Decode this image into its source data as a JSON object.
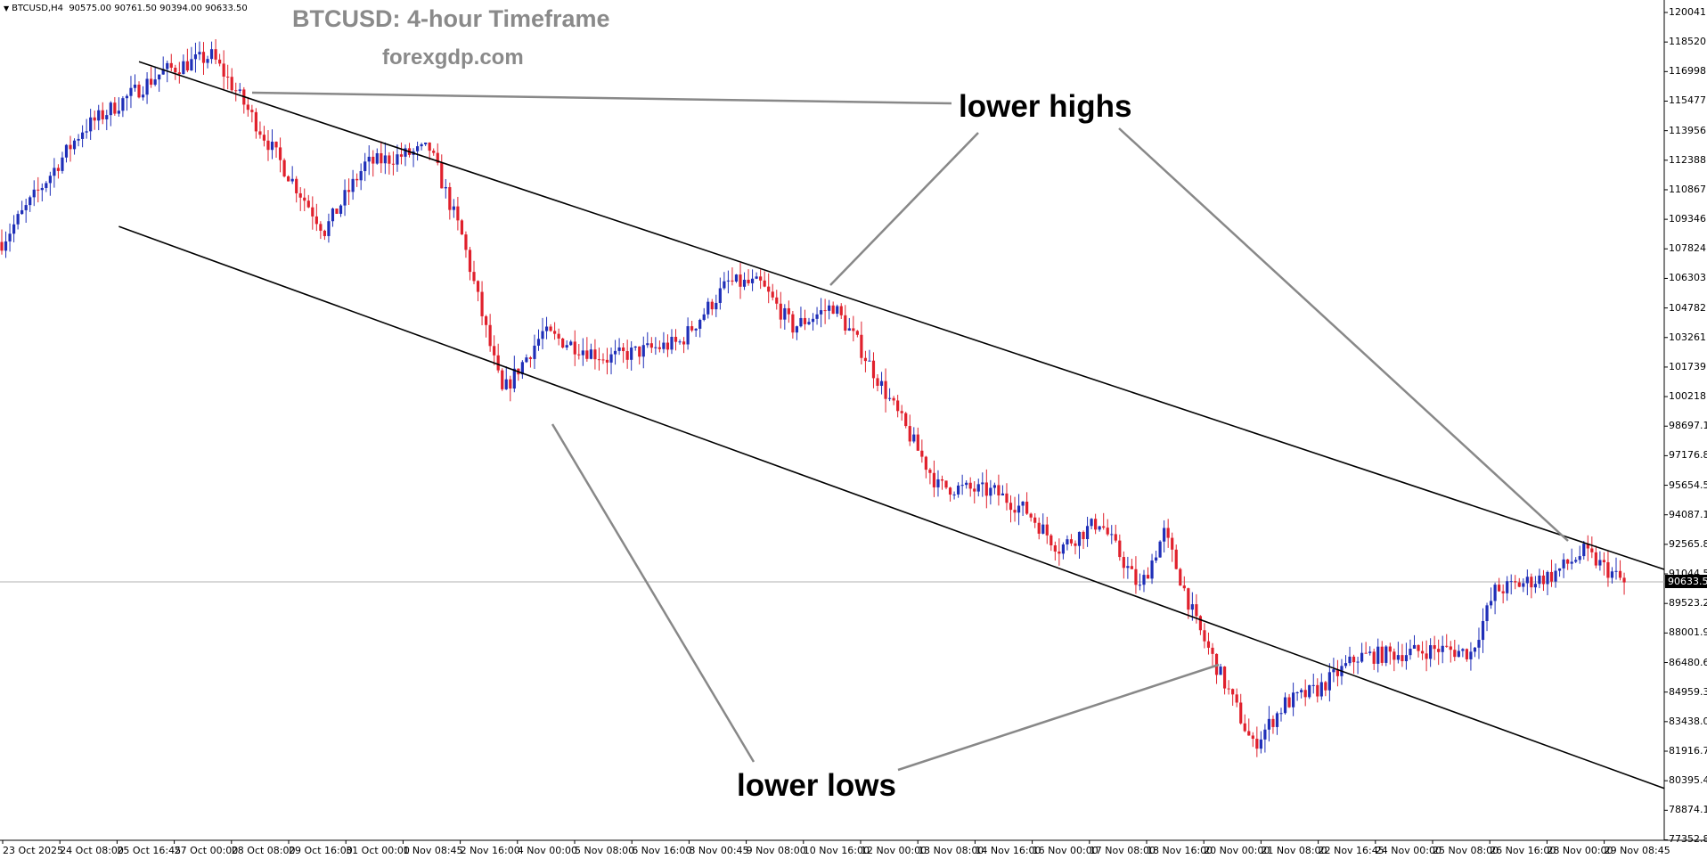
{
  "header": {
    "symbol": "BTCUSD,H4",
    "ohlc": "90575.00 90761.50 90394.00 90633.50"
  },
  "chart_data": {
    "type": "candlestick",
    "title": "BTCUSD: 4-hour Timeframe",
    "subtitle": "forexgdp.com",
    "annotations": [
      "lower highs",
      "lower lows"
    ],
    "current_price": "90633.50",
    "y_ticks": [
      "120041.00",
      "118520.40",
      "116998.80",
      "115477.50",
      "113956.20",
      "112388.80",
      "110867.50",
      "109346.20",
      "107824.90",
      "106303.60",
      "104782.30",
      "103261.00",
      "101739.70",
      "100218.40",
      "98697.10",
      "97176.80",
      "95654.50",
      "94087.10",
      "92565.80",
      "91044.50",
      "89523.20",
      "88001.90",
      "86480.60",
      "84959.30",
      "83438.00",
      "81916.70",
      "80395.40",
      "78874.10",
      "77352.80"
    ],
    "x_ticks": [
      "23 Oct 2025",
      "24 Oct 08:00",
      "25 Oct 16:45",
      "27 Oct 00:00",
      "28 Oct 08:00",
      "29 Oct 16:00",
      "31 Oct 00:00",
      "1 Nov 08:45",
      "2 Nov 16:00",
      "4 Nov 00:00",
      "5 Nov 08:00",
      "6 Nov 16:00",
      "8 Nov 00:45",
      "9 Nov 08:00",
      "10 Nov 16:00",
      "12 Nov 00:00",
      "13 Nov 08:00",
      "14 Nov 16:00",
      "16 Nov 00:00",
      "17 Nov 08:00",
      "18 Nov 16:00",
      "20 Nov 00:00",
      "21 Nov 08:00",
      "22 Nov 16:45",
      "24 Nov 00:00",
      "25 Nov 08:00",
      "26 Nov 16:00",
      "28 Nov 00:00",
      "29 Nov 08:45"
    ],
    "ylim": [
      77352.8,
      120041.0
    ],
    "key_points": [
      {
        "t": 0,
        "p": 108200
      },
      {
        "t": 20,
        "p": 114000
      },
      {
        "t": 40,
        "p": 117000
      },
      {
        "t": 52,
        "p": 117800
      },
      {
        "t": 58,
        "p": 116000
      },
      {
        "t": 70,
        "p": 112000
      },
      {
        "t": 80,
        "p": 108800
      },
      {
        "t": 90,
        "p": 112200
      },
      {
        "t": 106,
        "p": 113000
      },
      {
        "t": 114,
        "p": 108500
      },
      {
        "t": 124,
        "p": 100400
      },
      {
        "t": 134,
        "p": 103500
      },
      {
        "t": 150,
        "p": 102200
      },
      {
        "t": 168,
        "p": 103000
      },
      {
        "t": 180,
        "p": 106100
      },
      {
        "t": 188,
        "p": 106000
      },
      {
        "t": 196,
        "p": 103800
      },
      {
        "t": 206,
        "p": 104900
      },
      {
        "t": 212,
        "p": 103000
      },
      {
        "t": 222,
        "p": 99300
      },
      {
        "t": 232,
        "p": 95600
      },
      {
        "t": 246,
        "p": 95300
      },
      {
        "t": 254,
        "p": 94300
      },
      {
        "t": 262,
        "p": 92400
      },
      {
        "t": 272,
        "p": 93800
      },
      {
        "t": 282,
        "p": 90300
      },
      {
        "t": 288,
        "p": 93200
      },
      {
        "t": 296,
        "p": 88500
      },
      {
        "t": 306,
        "p": 84100
      },
      {
        "t": 310,
        "p": 82200
      },
      {
        "t": 318,
        "p": 84400
      },
      {
        "t": 326,
        "p": 85100
      },
      {
        "t": 336,
        "p": 86800
      },
      {
        "t": 348,
        "p": 87000
      },
      {
        "t": 356,
        "p": 87200
      },
      {
        "t": 364,
        "p": 87000
      },
      {
        "t": 370,
        "p": 90200
      },
      {
        "t": 384,
        "p": 91000
      },
      {
        "t": 392,
        "p": 92200
      },
      {
        "t": 402,
        "p": 90633.5
      }
    ],
    "trend_lines": [
      {
        "name": "upper channel",
        "from": {
          "t": 34,
          "p": 117500
        },
        "to": {
          "t": 412,
          "p": 91300
        }
      },
      {
        "name": "lower channel",
        "from": {
          "t": 29,
          "p": 109000
        },
        "to": {
          "t": 412,
          "p": 80000
        }
      }
    ]
  }
}
